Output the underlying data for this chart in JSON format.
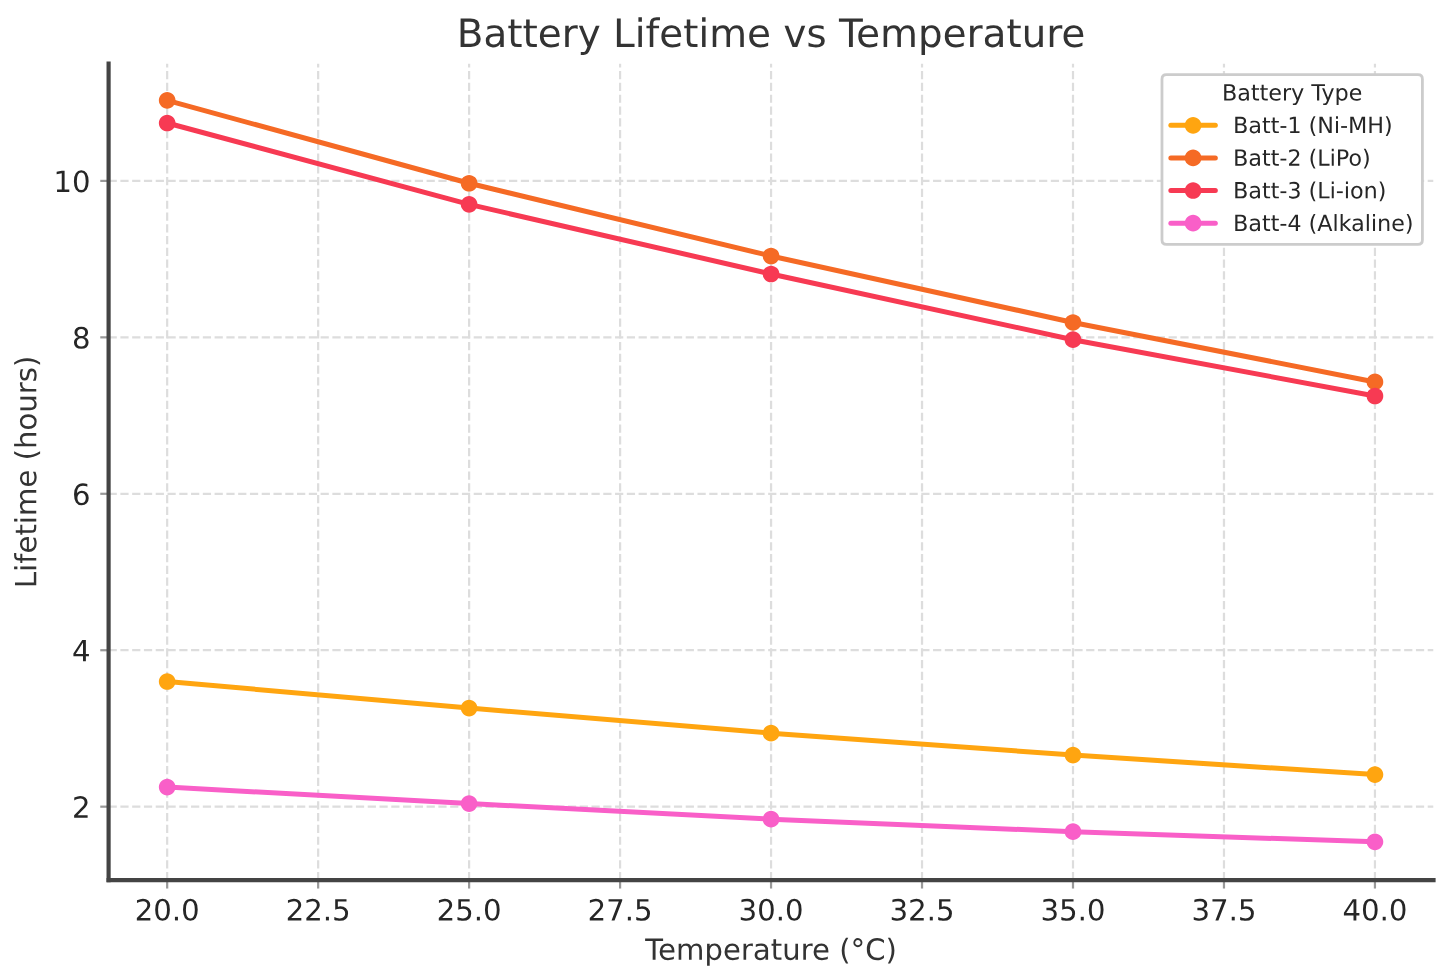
{
  "chart_data": {
    "type": "line",
    "title": "Battery Lifetime vs Temperature",
    "xlabel": "Temperature (°C)",
    "ylabel": "Lifetime (hours)",
    "legend_title": "Battery Type",
    "x": [
      20,
      25,
      30,
      35,
      40
    ],
    "series": [
      {
        "name": "Batt-1 (Ni-MH)",
        "color": "#ffa510",
        "values": [
          3.6,
          3.26,
          2.94,
          2.66,
          2.41
        ]
      },
      {
        "name": "Batt-2 (LiPo)",
        "color": "#f56a25",
        "values": [
          11.03,
          9.97,
          9.04,
          8.19,
          7.43
        ]
      },
      {
        "name": "Batt-3 (Li-ion)",
        "color": "#f73a53",
        "values": [
          10.74,
          9.7,
          8.81,
          7.97,
          7.25
        ]
      },
      {
        "name": "Batt-4 (Alkaline)",
        "color": "#f95fc8",
        "values": [
          2.25,
          2.04,
          1.84,
          1.68,
          1.55
        ]
      }
    ],
    "xlim": [
      19.03,
      40.97
    ],
    "ylim": [
      1.06,
      11.5
    ],
    "xticks": [
      {
        "value": 20,
        "label": "20.0"
      },
      {
        "value": 22.5,
        "label": "22.5"
      },
      {
        "value": 25,
        "label": "25.0"
      },
      {
        "value": 27.5,
        "label": "27.5"
      },
      {
        "value": 30,
        "label": "30.0"
      },
      {
        "value": 32.5,
        "label": "32.5"
      },
      {
        "value": 35,
        "label": "35.0"
      },
      {
        "value": 37.5,
        "label": "37.5"
      },
      {
        "value": 40,
        "label": "40.0"
      }
    ],
    "yticks": [
      2,
      4,
      6,
      8,
      10
    ],
    "grid": true,
    "legend": "top right",
    "marker": "circle",
    "line_style": "solid"
  }
}
